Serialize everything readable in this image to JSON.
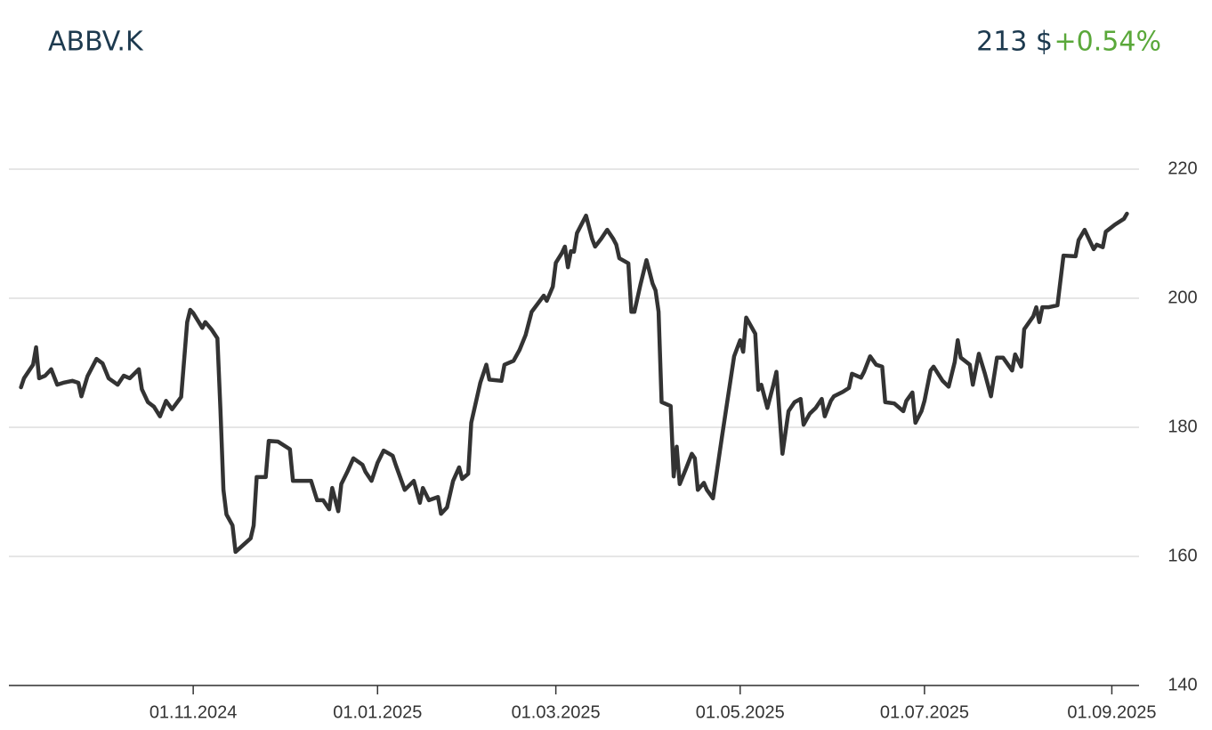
{
  "chart_data": {
    "type": "line",
    "title": "ABBV.K",
    "price": "213 $",
    "change": "+0.54%",
    "title_color": "#1d3a4f",
    "change_color": "#5aa83a",
    "grid": true,
    "xlim": [
      "01.09.2024",
      "10.09.2025"
    ],
    "xticks": [
      "01.11.2024",
      "01.01.2025",
      "01.03.2025",
      "01.05.2025",
      "01.07.2025",
      "01.09.2025"
    ],
    "ylim": [
      140,
      220
    ],
    "yticks": [
      140,
      160,
      180,
      200,
      220
    ],
    "x": [
      "05.09.2024",
      "06.09.2024",
      "09.09.2024",
      "10.09.2024",
      "11.09.2024",
      "13.09.2024",
      "15.09.2024",
      "17.09.2024",
      "19.09.2024",
      "22.09.2024",
      "24.09.2024",
      "25.09.2024",
      "27.09.2024",
      "30.09.2024",
      "02.10.2024",
      "04.10.2024",
      "07.10.2024",
      "09.10.2024",
      "11.10.2024",
      "14.10.2024",
      "15.10.2024",
      "17.10.2024",
      "19.10.2024",
      "21.10.2024",
      "23.10.2024",
      "25.10.2024",
      "28.10.2024",
      "30.10.2024",
      "31.10.2024",
      "01.11.2024",
      "04.11.2024",
      "05.11.2024",
      "07.11.2024",
      "09.11.2024",
      "10.11.2024",
      "11.11.2024",
      "12.11.2024",
      "14.11.2024",
      "15.11.2024",
      "20.11.2024",
      "21.11.2024",
      "22.11.2024",
      "25.11.2024",
      "26.11.2024",
      "29.11.2024",
      "03.12.2024",
      "04.12.2024",
      "07.12.2024",
      "10.12.2024",
      "12.12.2024",
      "14.12.2024",
      "16.12.2024",
      "17.12.2024",
      "19.12.2024",
      "20.12.2024",
      "22.12.2024",
      "24.12.2024",
      "27.12.2024",
      "28.12.2024",
      "30.12.2024",
      "01.01.2025",
      "03.01.2025",
      "06.01.2025",
      "07.01.2025",
      "10.01.2025",
      "13.01.2025",
      "15.01.2025",
      "16.01.2025",
      "18.01.2025",
      "21.01.2025",
      "22.01.2025",
      "24.01.2025",
      "26.01.2025",
      "28.01.2025",
      "29.01.2025",
      "31.01.2025",
      "01.02.2025",
      "04.02.2025",
      "06.02.2025",
      "07.02.2025",
      "11.02.2025",
      "12.02.2025",
      "15.02.2025",
      "17.02.2025",
      "19.02.2025",
      "21.02.2025",
      "25.02.2025",
      "26.02.2025",
      "28.02.2025",
      "01.03.2025",
      "03.03.2025",
      "04.03.2025",
      "05.03.2025",
      "06.03.2025",
      "07.03.2025",
      "08.03.2025",
      "11.03.2025",
      "13.03.2025",
      "14.03.2025",
      "16.03.2025",
      "18.03.2025",
      "20.03.2025",
      "21.03.2025",
      "22.03.2025",
      "25.03.2025",
      "26.03.2025",
      "27.03.2025",
      "29.03.2025",
      "31.03.2025",
      "02.04.2025",
      "03.04.2025",
      "04.04.2025",
      "05.04.2025",
      "08.04.2025",
      "09.04.2025",
      "10.04.2025",
      "11.04.2025",
      "13.04.2025",
      "15.04.2025",
      "16.04.2025",
      "17.04.2025",
      "19.04.2025",
      "20.04.2025",
      "22.04.2025",
      "25.04.2025",
      "27.04.2025",
      "29.04.2025",
      "01.05.2025",
      "02.05.2025",
      "03.05.2025",
      "06.05.2025",
      "07.05.2025",
      "08.05.2025",
      "10.05.2025",
      "12.05.2025",
      "13.05.2025",
      "15.05.2025",
      "17.05.2025",
      "19.05.2025",
      "21.05.2025",
      "22.05.2025",
      "24.05.2025",
      "26.05.2025",
      "28.05.2025",
      "29.05.2025",
      "31.05.2025",
      "01.06.2025",
      "04.06.2025",
      "06.06.2025",
      "07.06.2025",
      "10.06.2025",
      "11.06.2025",
      "13.06.2025",
      "15.06.2025",
      "17.06.2025",
      "18.06.2025",
      "21.06.2025",
      "24.06.2025",
      "25.06.2025",
      "27.06.2025",
      "28.06.2025",
      "30.06.2025",
      "01.07.2025",
      "03.07.2025",
      "04.07.2025",
      "07.07.2025",
      "09.07.2025",
      "11.07.2025",
      "12.07.2025",
      "13.07.2025",
      "16.07.2025",
      "17.07.2025",
      "19.07.2025",
      "21.07.2025",
      "23.07.2025",
      "25.07.2025",
      "27.07.2025",
      "30.07.2025",
      "31.07.2025",
      "02.08.2025",
      "03.08.2025",
      "06.08.2025",
      "07.08.2025",
      "08.08.2025",
      "09.08.2025",
      "11.08.2025",
      "14.08.2025",
      "16.08.2025",
      "20.08.2025",
      "21.08.2025",
      "23.08.2025",
      "26.08.2025",
      "27.08.2025",
      "29.08.2025",
      "30.08.2025",
      "02.09.2025",
      "05.09.2025",
      "06.09.2025"
    ],
    "series": [
      {
        "color": "#333333",
        "values": [
          186.2,
          187.6,
          189.7,
          192.4,
          187.6,
          188.0,
          189.0,
          186.6,
          186.9,
          187.2,
          186.9,
          184.8,
          187.9,
          190.6,
          189.9,
          187.6,
          186.6,
          188.0,
          187.6,
          189.0,
          185.9,
          183.9,
          183.2,
          181.7,
          184.1,
          182.8,
          184.7,
          196.3,
          198.2,
          197.7,
          195.4,
          196.3,
          195.2,
          193.8,
          182.8,
          170.3,
          166.5,
          164.8,
          160.7,
          162.8,
          164.8,
          172.3,
          172.3,
          177.9,
          177.8,
          176.6,
          171.7,
          171.7,
          171.7,
          168.7,
          168.7,
          167.3,
          170.6,
          167.0,
          171.2,
          173.1,
          175.2,
          174.2,
          173.1,
          171.7,
          174.5,
          176.4,
          175.6,
          174.2,
          170.3,
          171.7,
          168.3,
          170.6,
          168.7,
          169.2,
          166.6,
          167.6,
          171.7,
          173.8,
          172.0,
          172.8,
          180.7,
          186.9,
          189.7,
          187.4,
          187.2,
          189.7,
          190.3,
          192.0,
          194.3,
          197.9,
          200.4,
          199.6,
          201.8,
          205.5,
          207.0,
          208.0,
          204.8,
          207.3,
          207.2,
          210.1,
          212.8,
          209.2,
          208.0,
          209.2,
          210.6,
          209.2,
          208.3,
          206.2,
          205.4,
          197.9,
          197.9,
          202.1,
          205.9,
          202.3,
          201.2,
          197.9,
          183.9,
          183.3,
          172.4,
          177.0,
          171.2,
          173.5,
          175.9,
          175.2,
          170.3,
          171.4,
          170.3,
          169.0,
          178.6,
          184.8,
          191.0,
          193.5,
          191.7,
          197.0,
          194.5,
          185.8,
          186.6,
          183.0,
          186.6,
          188.6,
          175.9,
          182.5,
          183.9,
          184.4,
          180.4,
          182.1,
          183.0,
          184.4,
          181.7,
          184.1,
          184.8,
          185.5,
          186.1,
          188.3,
          187.7,
          188.6,
          191.0,
          189.7,
          189.4,
          183.9,
          183.7,
          182.5,
          184.1,
          185.4,
          180.7,
          182.5,
          184.1,
          188.8,
          189.4,
          187.2,
          186.3,
          190.1,
          193.5,
          190.8,
          189.7,
          186.6,
          191.4,
          188.3,
          184.8,
          190.8,
          190.8,
          188.8,
          191.3,
          189.4,
          195.2,
          197.2,
          198.6,
          196.3,
          198.6,
          198.6,
          198.9,
          206.6,
          206.5,
          209.0,
          210.6,
          207.6,
          208.3,
          207.9,
          210.3,
          211.4,
          212.3,
          213.1
        ]
      }
    ]
  }
}
